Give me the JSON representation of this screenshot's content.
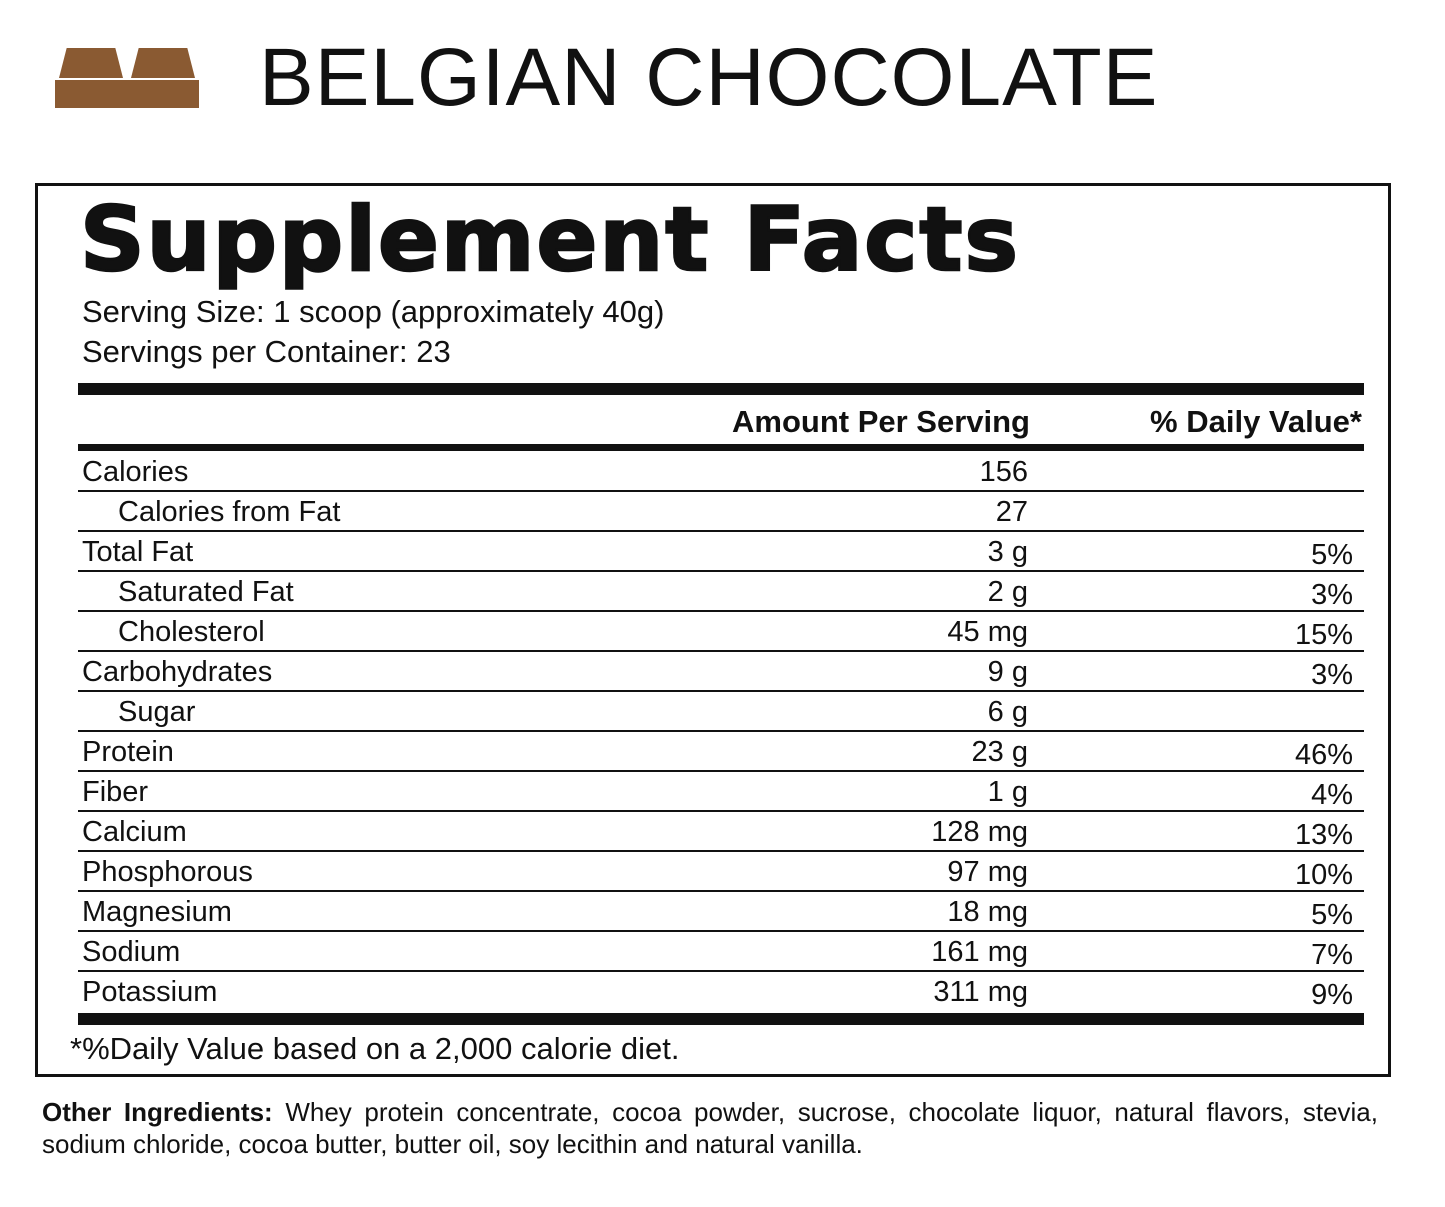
{
  "header": {
    "title": "BELGIAN CHOCOLATE",
    "icon": "chocolate-bar-icon",
    "icon_color": "#8a5a32"
  },
  "panel": {
    "title": "Supplement Facts",
    "serving_size": "Serving Size: 1 scoop (approximately 40g)",
    "servings_per_container": "Servings per Container: 23",
    "col_amount": "Amount Per Serving",
    "col_dv": "% Daily Value*",
    "rows": [
      {
        "name": "Calories",
        "amount": "156",
        "dv": ""
      },
      {
        "name": "Calories from Fat",
        "amount": "27",
        "dv": ""
      },
      {
        "name": "Total Fat",
        "amount": "3 g",
        "dv": "5%"
      },
      {
        "name": "Saturated Fat",
        "amount": "2 g",
        "dv": "3%"
      },
      {
        "name": "Cholesterol",
        "amount": "45 mg",
        "dv": "15%"
      },
      {
        "name": "Carbohydrates",
        "amount": "9 g",
        "dv": "3%"
      },
      {
        "name": "Sugar",
        "amount": "6 g",
        "dv": ""
      },
      {
        "name": "Protein",
        "amount": "23 g",
        "dv": "46%"
      },
      {
        "name": "Fiber",
        "amount": "1 g",
        "dv": "4%"
      },
      {
        "name": "Calcium",
        "amount": "128 mg",
        "dv": "13%"
      },
      {
        "name": "Phosphorous",
        "amount": "97 mg",
        "dv": "10%"
      },
      {
        "name": "Magnesium",
        "amount": "18 mg",
        "dv": "5%"
      },
      {
        "name": "Sodium",
        "amount": "161 mg",
        "dv": "7%"
      },
      {
        "name": "Potassium",
        "amount": "311 mg",
        "dv": "9%"
      }
    ],
    "footnote": "*%Daily Value based on a 2,000 calorie diet."
  },
  "ingredients": {
    "label": "Other Ingredients:",
    "text": "Whey protein concentrate, cocoa powder, sucrose, chocolate liquor, natural flavors, stevia, sodium chloride, cocoa butter, butter oil, soy lecithin and natural vanilla."
  }
}
